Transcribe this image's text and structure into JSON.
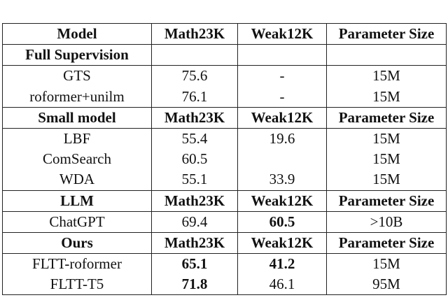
{
  "table": {
    "header": [
      "Model",
      "Math23K",
      "Weak12K",
      "Parameter Size"
    ],
    "rows": [
      [
        "Full Supervision",
        null,
        null,
        null
      ],
      [
        "GTS",
        "75.6",
        "-",
        "15M"
      ],
      [
        "roformer+unilm",
        "76.1",
        "-",
        "15M"
      ],
      [
        "Small model",
        "Math23K",
        "Weak12K",
        "Parameter Size"
      ],
      [
        "LBF",
        "55.4",
        "19.6",
        "15M"
      ],
      [
        "ComSearch",
        "60.5",
        null,
        "15M"
      ],
      [
        "WDA",
        "55.1",
        "33.9",
        "15M"
      ],
      [
        "LLM",
        "Math23K",
        "Weak12K",
        "Parameter Size"
      ],
      [
        "ChatGPT",
        "69.4",
        "60.5",
        ">10B"
      ],
      [
        "Ours",
        "Math23K",
        "Weak12K",
        "Parameter Size"
      ],
      [
        "FLTT-roformer",
        "65.1",
        "41.2",
        "15M"
      ],
      [
        "FLTT-T5",
        "71.8",
        "46.1",
        "95M"
      ]
    ]
  }
}
